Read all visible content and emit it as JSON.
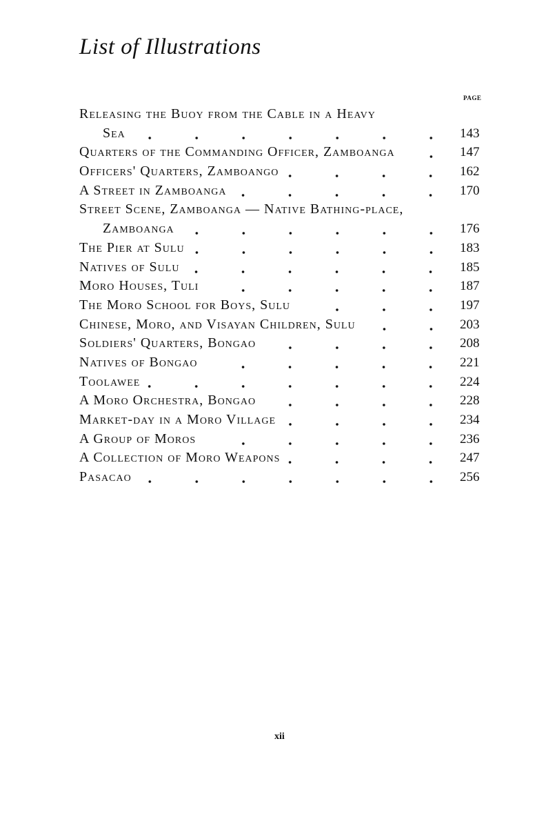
{
  "header": {
    "title": "List of Illustrations",
    "page_column_label": "PAGE"
  },
  "entries": [
    {
      "label": "Releasing the Buoy from the Cable in a Heavy",
      "page": ""
    },
    {
      "label": "Sea",
      "page": "143",
      "indent": true
    },
    {
      "label": "Quarters of the Commanding Officer, Zamboanga",
      "page": "147"
    },
    {
      "label": "Officers' Quarters, Zamboango",
      "page": "162"
    },
    {
      "label": "A Street in Zamboanga",
      "page": "170"
    },
    {
      "label": "Street Scene, Zamboanga — Native Bathing-place,",
      "page": ""
    },
    {
      "label": "Zamboanga",
      "page": "176",
      "indent": true
    },
    {
      "label": "The Pier at Sulu",
      "page": "183"
    },
    {
      "label": "Natives of Sulu",
      "page": "185"
    },
    {
      "label": "Moro Houses, Tuli",
      "page": "187"
    },
    {
      "label": "The Moro School for Boys, Sulu",
      "page": "197"
    },
    {
      "label": "Chinese, Moro, and Visayan Children, Sulu",
      "page": "203"
    },
    {
      "label": "Soldiers' Quarters, Bongao",
      "page": "208"
    },
    {
      "label": "Natives of Bongao",
      "page": "221"
    },
    {
      "label": "Toolawee",
      "page": "224"
    },
    {
      "label": "A Moro Orchestra, Bongao",
      "page": "228"
    },
    {
      "label": "Market-day in a Moro Village",
      "page": "234"
    },
    {
      "label": "A Group of Moros",
      "page": "236"
    },
    {
      "label": "A Collection of Moro Weapons",
      "page": "247"
    },
    {
      "label": "Pasacao",
      "page": "256"
    }
  ],
  "footer": {
    "folio": "xii"
  }
}
